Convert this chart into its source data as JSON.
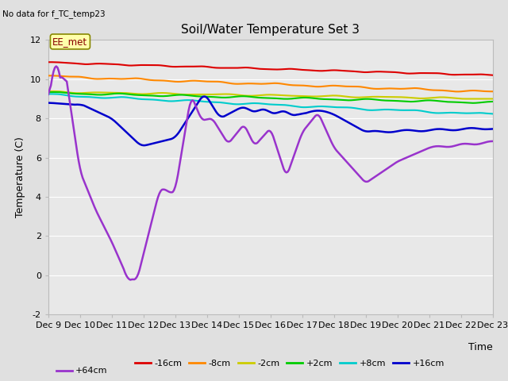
{
  "title": "Soil/Water Temperature Set 3",
  "no_data_label": "No data for f_TC_temp23",
  "station_label": "EE_met",
  "ylabel": "Temperature (C)",
  "xlabel": "Time",
  "ylim": [
    -2,
    12
  ],
  "xlim": [
    0,
    336
  ],
  "colors": {
    "-16cm": "#dd0000",
    "-8cm": "#ff8800",
    "-2cm": "#cccc00",
    "+2cm": "#00cc00",
    "+8cm": "#00cccc",
    "+16cm": "#0000cc",
    "+64cm": "#9933cc"
  },
  "xtick_labels": [
    "Dec 9",
    "Dec 10",
    "Dec 11",
    "Dec 12",
    "Dec 13",
    "Dec 14",
    "Dec 15",
    "Dec 16",
    "Dec 17",
    "Dec 18",
    "Dec 19",
    "Dec 20",
    "Dec 21",
    "Dec 22",
    "Dec 23"
  ],
  "xtick_positions": [
    0,
    24,
    48,
    72,
    96,
    120,
    144,
    168,
    192,
    216,
    240,
    264,
    288,
    312,
    336
  ],
  "yticks": [
    -2,
    0,
    2,
    4,
    6,
    8,
    10,
    12
  ],
  "bg_outer": "#e0e0e0",
  "bg_plot": "#e8e8e8",
  "grid_color": "#ffffff",
  "title_fontsize": 11,
  "tick_fontsize": 8,
  "label_fontsize": 9,
  "legend_fontsize": 8
}
